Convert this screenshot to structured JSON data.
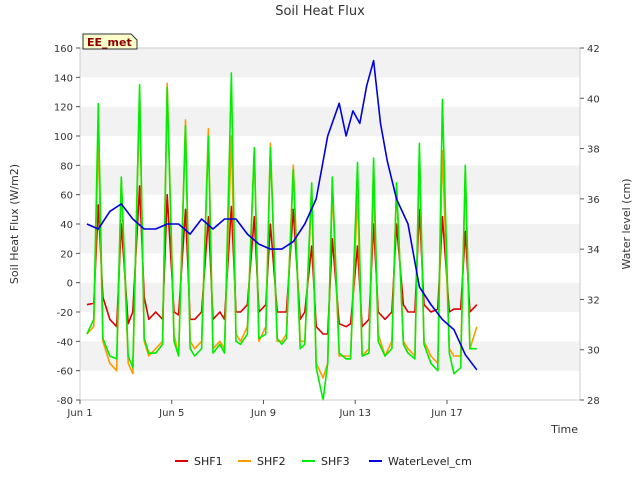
{
  "chart_data": {
    "type": "line",
    "title": "Soil Heat Flux",
    "site_label": "EE_met",
    "xlabel": "Time",
    "ylabel": "Soil Heat Flux (W/m2)",
    "y2label": "Water level (cm)",
    "xlim": [
      0,
      21.8
    ],
    "ylim": [
      -80,
      160
    ],
    "y2lim": [
      28,
      42
    ],
    "x_ticks": [
      {
        "value": 0,
        "label": "Jun 1"
      },
      {
        "value": 4,
        "label": "Jun 5"
      },
      {
        "value": 8,
        "label": "Jun 9"
      },
      {
        "value": 12,
        "label": "Jun 13"
      },
      {
        "value": 16,
        "label": "Jun 17"
      }
    ],
    "y_ticks": [
      -80,
      -60,
      -40,
      -20,
      0,
      20,
      40,
      60,
      80,
      100,
      120,
      140,
      160
    ],
    "y2_ticks": [
      28,
      30,
      32,
      34,
      36,
      38,
      40,
      42
    ],
    "legend_position": "bottom-center",
    "x_unit": "days since Jun 1",
    "series": [
      {
        "name": "SHF1",
        "axis": "left",
        "color": "#dd0000",
        "mean_day_data": [
          0.3,
          0.8,
          1.3,
          1.8,
          2.3,
          2.8,
          3.3,
          3.8,
          4.3,
          4.8,
          5.3,
          5.8,
          6.3,
          6.8,
          7.3,
          7.8,
          8.3,
          8.8,
          9.3,
          9.8,
          10.3,
          10.8,
          11.3,
          11.8,
          12.3,
          12.8,
          13.3,
          13.8,
          14.3,
          14.8,
          15.3,
          15.8,
          16.3,
          16.8,
          17.3
        ],
        "x": [
          0.3,
          0.6,
          0.8,
          1.0,
          1.3,
          1.6,
          1.8,
          2.1,
          2.3,
          2.6,
          2.8,
          3.0,
          3.3,
          3.6,
          3.8,
          4.1,
          4.3,
          4.6,
          4.8,
          5.0,
          5.3,
          5.6,
          5.8,
          6.1,
          6.3,
          6.6,
          6.8,
          7.0,
          7.3,
          7.6,
          7.8,
          8.1,
          8.3,
          8.6,
          8.8,
          9.0,
          9.3,
          9.6,
          9.8,
          10.1,
          10.3,
          10.6,
          10.8,
          11.0,
          11.3,
          11.6,
          11.8,
          12.1,
          12.3,
          12.6,
          12.8,
          13.0,
          13.3,
          13.6,
          13.8,
          14.1,
          14.3,
          14.6,
          14.8,
          15.0,
          15.3,
          15.6,
          15.8,
          16.1,
          16.3,
          16.6,
          16.8,
          17.0,
          17.3
        ],
        "values": [
          -15,
          -14,
          53,
          -10,
          -25,
          -30,
          40,
          -28,
          -20,
          66,
          -10,
          -25,
          -20,
          -25,
          60,
          -20,
          -22,
          50,
          -25,
          -25,
          -20,
          45,
          -25,
          -20,
          -25,
          52,
          -20,
          -20,
          -15,
          45,
          -20,
          -15,
          40,
          -20,
          -20,
          -20,
          50,
          -25,
          -20,
          25,
          -30,
          -35,
          -35,
          30,
          -28,
          -30,
          -28,
          25,
          -30,
          -25,
          40,
          -20,
          -25,
          -20,
          40,
          -15,
          -20,
          -20,
          50,
          -15,
          -20,
          -18,
          45,
          -20,
          -18,
          -18,
          35,
          -20,
          -15
        ]
      },
      {
        "name": "SHF2",
        "axis": "left",
        "color": "#ff9900",
        "x": [
          0.3,
          0.6,
          0.8,
          1.0,
          1.3,
          1.6,
          1.8,
          2.1,
          2.3,
          2.6,
          2.8,
          3.0,
          3.3,
          3.6,
          3.8,
          4.1,
          4.3,
          4.6,
          4.8,
          5.0,
          5.3,
          5.6,
          5.8,
          6.1,
          6.3,
          6.6,
          6.8,
          7.0,
          7.3,
          7.6,
          7.8,
          8.1,
          8.3,
          8.6,
          8.8,
          9.0,
          9.3,
          9.6,
          9.8,
          10.1,
          10.3,
          10.6,
          10.8,
          11.0,
          11.3,
          11.6,
          11.8,
          12.1,
          12.3,
          12.6,
          12.8,
          13.0,
          13.3,
          13.6,
          13.8,
          14.1,
          14.3,
          14.6,
          14.8,
          15.0,
          15.3,
          15.6,
          15.8,
          16.1,
          16.3,
          16.6,
          16.8,
          17.0,
          17.3
        ],
        "values": [
          -35,
          -30,
          100,
          -40,
          -55,
          -60,
          70,
          -55,
          -62,
          130,
          -40,
          -50,
          -45,
          -40,
          136,
          -35,
          -50,
          111,
          -40,
          -45,
          -40,
          105,
          -45,
          -40,
          -45,
          100,
          -35,
          -40,
          -30,
          90,
          -40,
          -30,
          95,
          -40,
          -40,
          -35,
          80,
          -40,
          -40,
          60,
          -55,
          -65,
          -55,
          65,
          -50,
          -50,
          -50,
          60,
          -50,
          -45,
          70,
          -35,
          -50,
          -40,
          65,
          -40,
          -45,
          -50,
          85,
          -40,
          -50,
          -55,
          90,
          -45,
          -50,
          -50,
          75,
          -45,
          -30
        ]
      },
      {
        "name": "SHF3",
        "axis": "left",
        "color": "#00ee00",
        "x": [
          0.3,
          0.6,
          0.8,
          1.0,
          1.3,
          1.6,
          1.8,
          2.1,
          2.3,
          2.6,
          2.8,
          3.0,
          3.3,
          3.6,
          3.8,
          4.1,
          4.3,
          4.6,
          4.8,
          5.0,
          5.3,
          5.6,
          5.8,
          6.1,
          6.3,
          6.6,
          6.8,
          7.0,
          7.3,
          7.6,
          7.8,
          8.1,
          8.3,
          8.6,
          8.8,
          9.0,
          9.3,
          9.6,
          9.8,
          10.1,
          10.3,
          10.6,
          10.8,
          11.0,
          11.3,
          11.6,
          11.8,
          12.1,
          12.3,
          12.6,
          12.8,
          13.0,
          13.3,
          13.6,
          13.8,
          14.1,
          14.3,
          14.6,
          14.8,
          15.0,
          15.3,
          15.6,
          15.8,
          16.1,
          16.3,
          16.6,
          16.8,
          17.0,
          17.3
        ],
        "values": [
          -35,
          -25,
          122,
          -38,
          -50,
          -52,
          72,
          -50,
          -58,
          135,
          -38,
          -48,
          -48,
          -42,
          133,
          -40,
          -50,
          107,
          -45,
          -50,
          -45,
          100,
          -48,
          -42,
          -48,
          143,
          -40,
          -42,
          -35,
          92,
          -38,
          -35,
          92,
          -38,
          -42,
          -38,
          77,
          -45,
          -42,
          68,
          -58,
          -80,
          -55,
          72,
          -48,
          -52,
          -52,
          82,
          -50,
          -48,
          85,
          -40,
          -50,
          -45,
          68,
          -42,
          -48,
          -52,
          95,
          -42,
          -55,
          -60,
          125,
          -48,
          -62,
          -58,
          80,
          -45,
          -45
        ]
      },
      {
        "name": "WaterLevel_cm",
        "axis": "right",
        "color": "#0000dd",
        "x": [
          0.3,
          0.8,
          1.3,
          1.8,
          2.3,
          2.8,
          3.3,
          3.8,
          4.3,
          4.8,
          5.3,
          5.8,
          6.3,
          6.8,
          7.3,
          7.8,
          8.3,
          8.8,
          9.3,
          9.8,
          10.3,
          10.8,
          11.3,
          11.6,
          11.9,
          12.2,
          12.5,
          12.8,
          13.1,
          13.4,
          13.8,
          14.3,
          14.8,
          15.3,
          15.8,
          16.3,
          16.8,
          17.3
        ],
        "values": [
          35,
          34.8,
          35.5,
          35.8,
          35.2,
          34.8,
          34.8,
          35.0,
          35.0,
          34.6,
          35.2,
          34.8,
          35.2,
          35.2,
          34.6,
          34.2,
          34.0,
          34.0,
          34.3,
          35.0,
          36.0,
          38.5,
          39.8,
          38.5,
          39.5,
          39.0,
          40.5,
          41.5,
          39.0,
          37.5,
          36.0,
          35.0,
          32.5,
          31.8,
          31.2,
          30.8,
          29.8,
          29.2
        ]
      }
    ]
  }
}
